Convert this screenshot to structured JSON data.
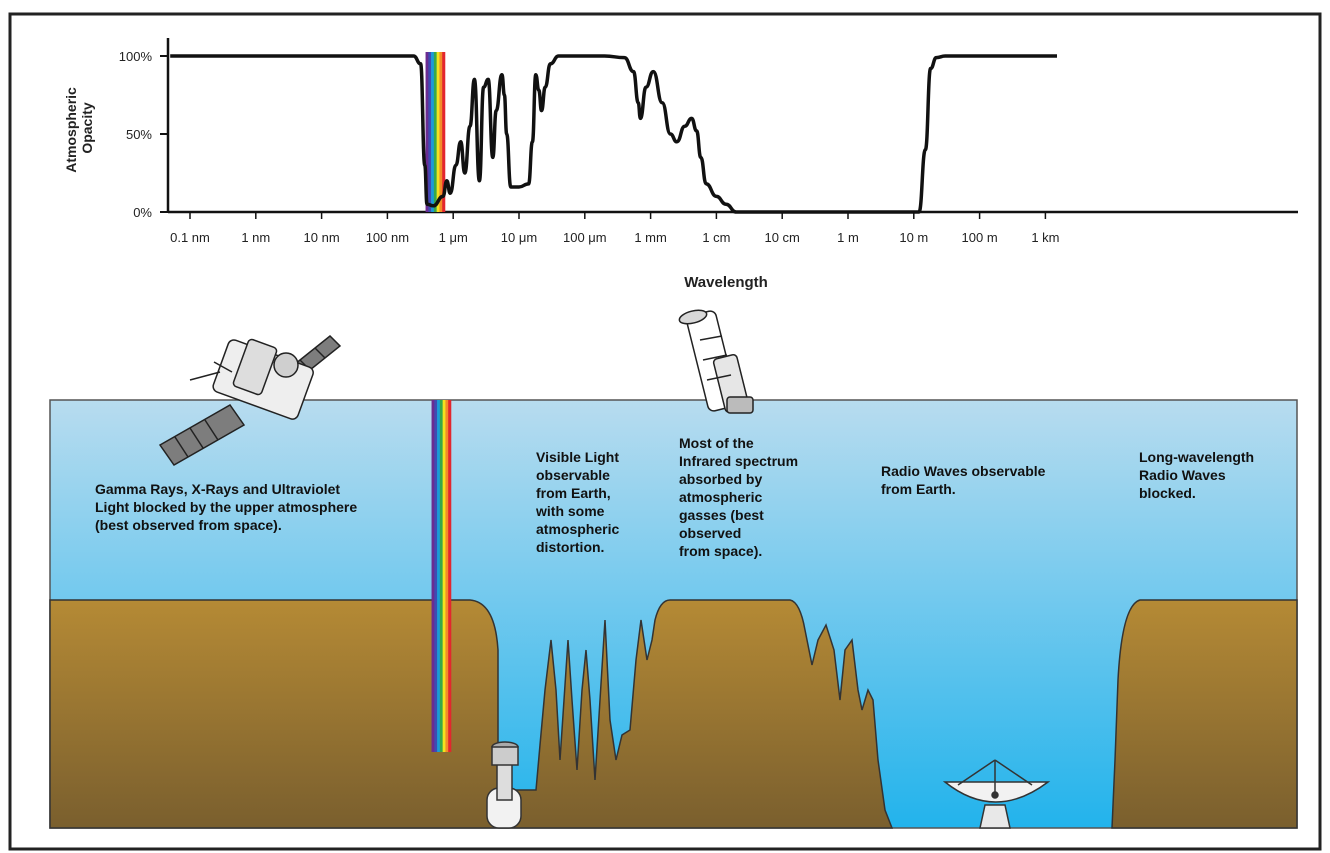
{
  "colors": {
    "sky_top": "#b8dcef",
    "sky_bottom": "#22b3ec",
    "ground_top": "#b58a35",
    "ground_bottom": "#7a5f2e",
    "curve": "#111111",
    "spectrum": [
      "#6a2c91",
      "#3f4bb2",
      "#1a9bd7",
      "#37a84a",
      "#f3e21e",
      "#f28c28",
      "#e3262e"
    ]
  },
  "chart_data": {
    "type": "line",
    "ylabel": [
      "Atmospheric",
      "Opacity"
    ],
    "xlabel": "Wavelength",
    "x_scale": "log",
    "x_unit": "m",
    "yticks": [
      "0%",
      "50%",
      "100%"
    ],
    "ylim": [
      0,
      100
    ],
    "xticks": [
      {
        "label": "0.1 nm",
        "value": 1e-10
      },
      {
        "label": "1 nm",
        "value": 1e-09
      },
      {
        "label": "10 nm",
        "value": 1e-08
      },
      {
        "label": "100 nm",
        "value": 1e-07
      },
      {
        "label": "1 μm",
        "value": 1e-06
      },
      {
        "label": "10 μm",
        "value": 1e-05
      },
      {
        "label": "100 μm",
        "value": 0.0001
      },
      {
        "label": "1 mm",
        "value": 0.001
      },
      {
        "label": "1 cm",
        "value": 0.01
      },
      {
        "label": "10 cm",
        "value": 0.1
      },
      {
        "label": "1 m",
        "value": 1
      },
      {
        "label": "10 m",
        "value": 10
      },
      {
        "label": "100 m",
        "value": 100
      },
      {
        "label": "1 km",
        "value": 1000
      }
    ],
    "series": [
      {
        "points": [
          [
            5e-11,
            100
          ],
          [
            2.5e-07,
            100
          ],
          [
            3.2e-07,
            95
          ],
          [
            3.7e-07,
            30
          ],
          [
            4e-07,
            5
          ],
          [
            5e-07,
            4
          ],
          [
            7e-07,
            10
          ],
          [
            8e-07,
            20
          ],
          [
            9e-07,
            12
          ],
          [
            1.1e-06,
            30
          ],
          [
            1.3e-06,
            45
          ],
          [
            1.5e-06,
            25
          ],
          [
            1.8e-06,
            55
          ],
          [
            2.1e-06,
            85
          ],
          [
            2.5e-06,
            20
          ],
          [
            2.9e-06,
            80
          ],
          [
            3.4e-06,
            85
          ],
          [
            4e-06,
            35
          ],
          [
            4.5e-06,
            65
          ],
          [
            5.5e-06,
            88
          ],
          [
            6e-06,
            75
          ],
          [
            6.5e-06,
            50
          ],
          [
            7.5e-06,
            16
          ],
          [
            1e-05,
            16
          ],
          [
            1.4e-05,
            18
          ],
          [
            1.6e-05,
            45
          ],
          [
            1.8e-05,
            88
          ],
          [
            2e-05,
            78
          ],
          [
            2.2e-05,
            65
          ],
          [
            2.5e-05,
            80
          ],
          [
            3e-05,
            95
          ],
          [
            4e-05,
            100
          ],
          [
            0.0002,
            100
          ],
          [
            0.0004,
            99
          ],
          [
            0.00055,
            90
          ],
          [
            0.00065,
            70
          ],
          [
            0.0007,
            60
          ],
          [
            0.00085,
            80
          ],
          [
            0.0011,
            90
          ],
          [
            0.0015,
            70
          ],
          [
            0.002,
            50
          ],
          [
            0.0025,
            45
          ],
          [
            0.0033,
            55
          ],
          [
            0.0042,
            60
          ],
          [
            0.005,
            52
          ],
          [
            0.0058,
            35
          ],
          [
            0.007,
            18
          ],
          [
            0.01,
            10
          ],
          [
            0.014,
            5
          ],
          [
            0.02,
            0
          ],
          [
            12,
            0
          ],
          [
            15,
            40
          ],
          [
            18,
            92
          ],
          [
            22,
            99
          ],
          [
            30,
            100
          ],
          [
            1500,
            100
          ]
        ]
      }
    ],
    "visible_band": {
      "from": 3.8e-07,
      "to": 7.5e-07
    }
  },
  "captions": {
    "gamma": [
      "Gamma Rays, X-Rays and Ultraviolet",
      "Light blocked by the upper atmosphere",
      "(best observed from space)."
    ],
    "visible": [
      "Visible Light",
      "observable",
      "from Earth,",
      "with some",
      "atmospheric",
      "distortion."
    ],
    "infrared": [
      "Most of the",
      "Infrared spectrum",
      "absorbed by",
      "atmospheric",
      "gasses (best",
      "observed",
      "from space)."
    ],
    "radio": [
      "Radio Waves observable",
      "from Earth."
    ],
    "longwave": [
      "Long-wavelength",
      "Radio Waves",
      "blocked."
    ]
  },
  "icons": {
    "satellite": "satellite-icon",
    "space_telescope": "space-telescope-icon",
    "ground_telescope": "ground-telescope-icon",
    "radio_dish": "radio-dish-icon"
  }
}
